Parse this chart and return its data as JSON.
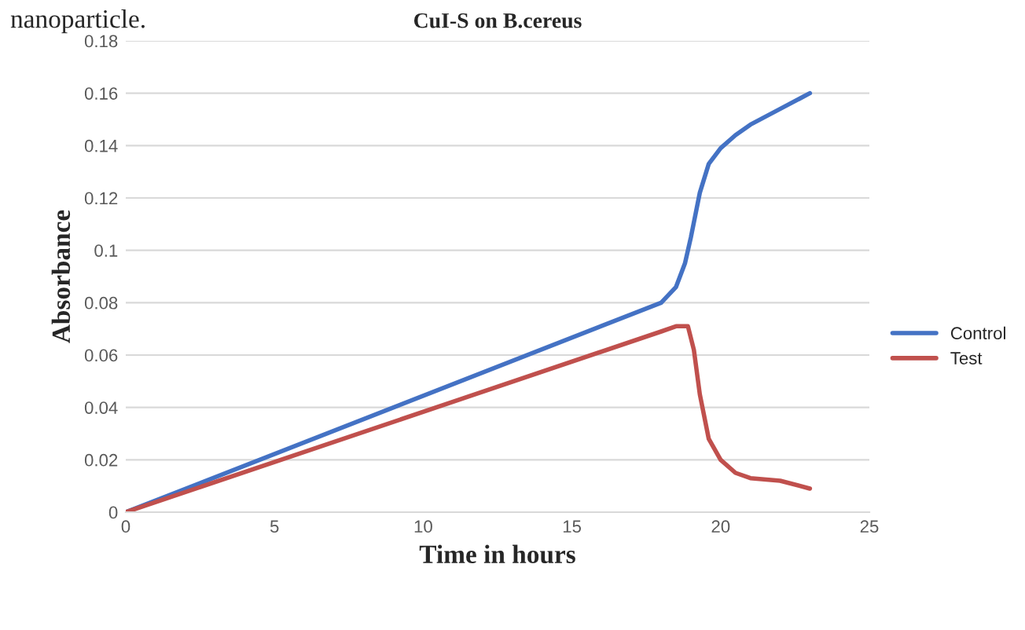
{
  "chart_data": {
    "type": "line",
    "title": "CuI-S on B.cereus",
    "xlabel": "Time in hours",
    "ylabel": "Absorbance",
    "xlim": [
      0,
      25
    ],
    "xticks": [
      0,
      5,
      10,
      15,
      20,
      25
    ],
    "ylim": [
      0,
      0.18
    ],
    "yticks": [
      0,
      0.02,
      0.04,
      0.06,
      0.08,
      0.1,
      0.12,
      0.14,
      0.16,
      0.18
    ],
    "grid": "y",
    "legend": "right",
    "marker": "none",
    "line_style": "solid",
    "annotations": [
      "nanoparticle."
    ],
    "series": [
      {
        "name": "Control",
        "color": "#4472c4",
        "x": [
          0,
          18,
          18.5,
          18.8,
          19,
          19.3,
          19.6,
          20,
          20.5,
          21,
          22,
          23
        ],
        "values": [
          0,
          0.08,
          0.086,
          0.095,
          0.105,
          0.122,
          0.133,
          0.139,
          0.144,
          0.148,
          0.154,
          0.16
        ]
      },
      {
        "name": "Test",
        "color": "#c0504d",
        "x": [
          0,
          18,
          18.5,
          18.9,
          19.1,
          19.3,
          19.6,
          20,
          20.5,
          21,
          22,
          23
        ],
        "values": [
          0,
          0.069,
          0.071,
          0.071,
          0.062,
          0.045,
          0.028,
          0.02,
          0.015,
          0.013,
          0.012,
          0.009
        ]
      }
    ]
  }
}
